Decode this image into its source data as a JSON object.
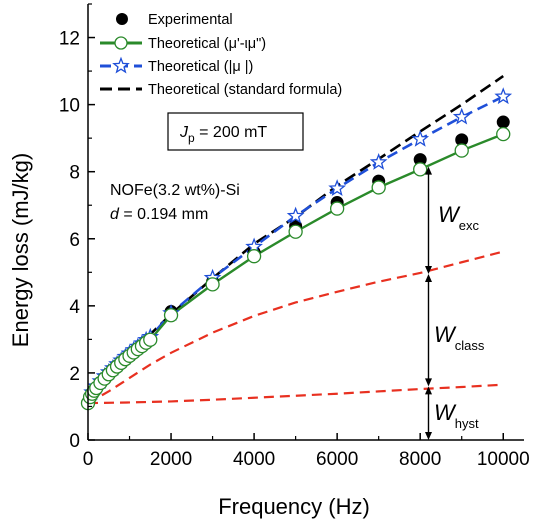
{
  "chart_data": {
    "type": "line",
    "xlabel": "Frequency (Hz)",
    "ylabel": "Energy loss (mJ/kg)",
    "xlim": [
      0,
      10500
    ],
    "ylim": [
      0,
      13
    ],
    "x_ticks": [
      0,
      2000,
      4000,
      6000,
      8000,
      10000
    ],
    "y_ticks": [
      0,
      2,
      4,
      6,
      8,
      10,
      12
    ],
    "grid": false,
    "legend_position": "top-left",
    "series": [
      {
        "name": "Experimental",
        "style": "marker",
        "marker": "filled-circle",
        "color": "#000000",
        "x": [
          2000,
          3000,
          4000,
          5000,
          6000,
          7000,
          8000,
          9000,
          10000
        ],
        "y": [
          3.83,
          4.72,
          5.6,
          6.38,
          7.08,
          7.72,
          8.36,
          8.95,
          9.48
        ]
      },
      {
        "name": "Theoretical (μ'-ιμ\")",
        "style": "line+marker",
        "marker": "open-circle",
        "color": "#2a8a2a",
        "x": [
          0,
          50,
          100,
          150,
          200,
          300,
          400,
          500,
          600,
          700,
          800,
          900,
          1000,
          1100,
          1200,
          1300,
          1400,
          1500,
          2000,
          3000,
          4000,
          5000,
          6000,
          7000,
          8000,
          9000,
          10000
        ],
        "y": [
          1.1,
          1.28,
          1.38,
          1.47,
          1.55,
          1.7,
          1.83,
          1.96,
          2.08,
          2.19,
          2.3,
          2.41,
          2.51,
          2.61,
          2.71,
          2.8,
          2.9,
          2.99,
          3.72,
          4.64,
          5.48,
          6.21,
          6.9,
          7.53,
          8.07,
          8.63,
          9.12
        ]
      },
      {
        "name": "Theoretical (|μ |)",
        "style": "line+marker",
        "marker": "open-star",
        "color": "#1f4fd8",
        "x": [
          0,
          100,
          200,
          300,
          400,
          500,
          600,
          700,
          800,
          900,
          1000,
          1100,
          1200,
          1300,
          1400,
          1500,
          2000,
          3000,
          4000,
          5000,
          6000,
          7000,
          8000,
          9000,
          10000
        ],
        "y": [
          1.1,
          1.42,
          1.6,
          1.75,
          1.9,
          2.02,
          2.14,
          2.26,
          2.37,
          2.48,
          2.58,
          2.68,
          2.78,
          2.88,
          2.98,
          3.07,
          3.78,
          4.83,
          5.76,
          6.68,
          7.5,
          8.28,
          8.97,
          9.63,
          10.24
        ]
      },
      {
        "name": "Theoretical (standard formula)",
        "style": "dashed",
        "color": "#000000",
        "x": [
          0,
          500,
          1000,
          1500,
          2000,
          3000,
          4000,
          5000,
          6000,
          7000,
          8000,
          9000,
          10000
        ],
        "y": [
          1.1,
          2.0,
          2.62,
          3.15,
          3.75,
          4.82,
          5.85,
          6.65,
          7.58,
          8.38,
          9.2,
          10.0,
          10.85
        ]
      },
      {
        "name": "",
        "style": "dashed",
        "color": "#e83020",
        "x": [
          0,
          500,
          1000,
          1500,
          2000,
          3000,
          4000,
          5000,
          6000,
          7000,
          8000,
          9000,
          10000
        ],
        "y": [
          1.1,
          1.45,
          1.85,
          2.25,
          2.6,
          3.2,
          3.7,
          4.1,
          4.42,
          4.72,
          4.98,
          5.3,
          5.62
        ]
      },
      {
        "name": "",
        "style": "dashed",
        "color": "#e83020",
        "x": [
          0,
          1000,
          2000,
          3000,
          4000,
          5000,
          6000,
          7000,
          8000,
          9000,
          10000
        ],
        "y": [
          1.1,
          1.12,
          1.15,
          1.2,
          1.26,
          1.32,
          1.38,
          1.45,
          1.52,
          1.58,
          1.65
        ]
      }
    ],
    "annotations": {
      "jp_label": "J",
      "jp_sub": "p",
      "jp_value": " = 200 mT",
      "material": "NOFe(3.2 wt%)-Si",
      "thickness_var": "d",
      "thickness_value": " = 0.194 mm",
      "w_exc": "W",
      "w_exc_sub": "exc",
      "w_class": "W",
      "w_class_sub": "class",
      "w_hyst": "W",
      "w_hyst_sub": "hyst"
    },
    "brackets": {
      "x": 8200,
      "hyst": [
        0,
        1.6
      ],
      "class": [
        1.6,
        4.95
      ],
      "exc": [
        4.95,
        8.15
      ]
    }
  }
}
